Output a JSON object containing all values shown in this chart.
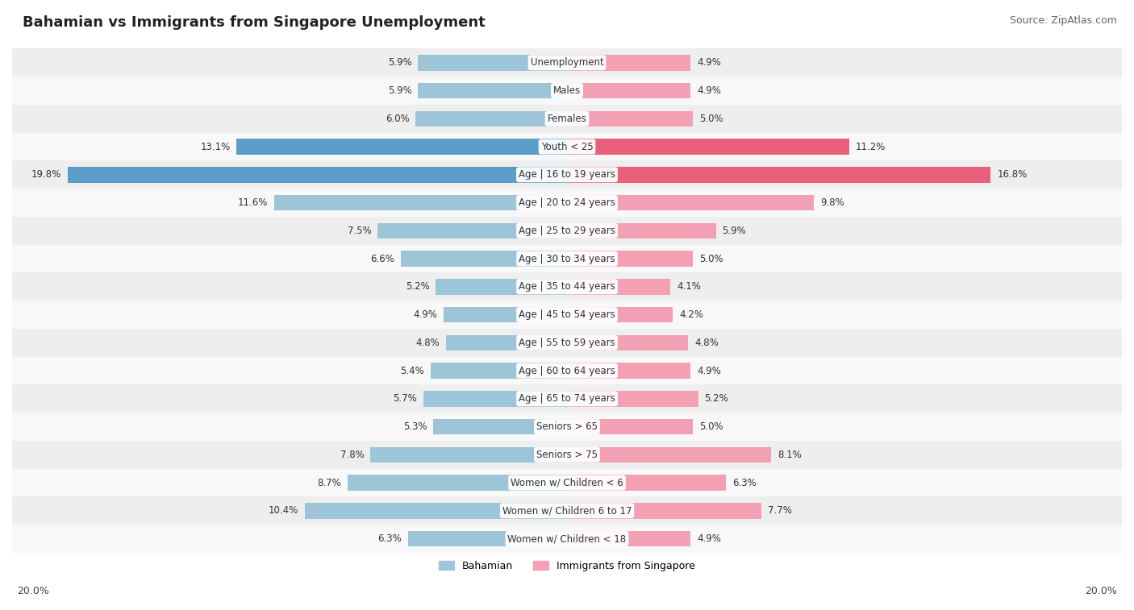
{
  "title": "Bahamian vs Immigrants from Singapore Unemployment",
  "source": "Source: ZipAtlas.com",
  "categories": [
    "Unemployment",
    "Males",
    "Females",
    "Youth < 25",
    "Age | 16 to 19 years",
    "Age | 20 to 24 years",
    "Age | 25 to 29 years",
    "Age | 30 to 34 years",
    "Age | 35 to 44 years",
    "Age | 45 to 54 years",
    "Age | 55 to 59 years",
    "Age | 60 to 64 years",
    "Age | 65 to 74 years",
    "Seniors > 65",
    "Seniors > 75",
    "Women w/ Children < 6",
    "Women w/ Children 6 to 17",
    "Women w/ Children < 18"
  ],
  "bahamian": [
    5.9,
    5.9,
    6.0,
    13.1,
    19.8,
    11.6,
    7.5,
    6.6,
    5.2,
    4.9,
    4.8,
    5.4,
    5.7,
    5.3,
    7.8,
    8.7,
    10.4,
    6.3
  ],
  "singapore": [
    4.9,
    4.9,
    5.0,
    11.2,
    16.8,
    9.8,
    5.9,
    5.0,
    4.1,
    4.2,
    4.8,
    4.9,
    5.2,
    5.0,
    8.1,
    6.3,
    7.7,
    4.9
  ],
  "bahamian_color": "#9ec4d8",
  "singapore_color": "#f4a0b4",
  "bahamian_highlight_color": "#5b9ec9",
  "singapore_highlight_color": "#e8607c",
  "row_bg_odd": "#eeeeee",
  "row_bg_even": "#f8f8f8",
  "bar_max": 20.0,
  "legend_bahamian": "Bahamian",
  "legend_singapore": "Immigrants from Singapore",
  "axis_label_left": "20.0%",
  "axis_label_right": "20.0%",
  "title_fontsize": 13,
  "source_fontsize": 9,
  "label_fontsize": 8.5,
  "category_fontsize": 8.5,
  "bahamian_highlight_threshold": 13.0,
  "singapore_highlight_threshold": 11.0
}
